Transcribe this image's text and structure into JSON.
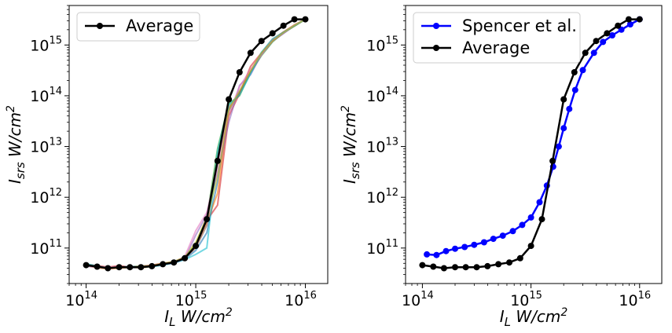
{
  "chart_data": [
    {
      "type": "line",
      "xscale": "log",
      "yscale": "log",
      "xlim": [
        70000000000000,
        16000000000000000
      ],
      "ylim": [
        20000000000,
        6000000000000000
      ],
      "xlabel": "I_L W/cm^2",
      "ylabel": "I_srs W/cm^2",
      "xticks": [
        {
          "value": 100000000000000,
          "base": "10",
          "exp": "14"
        },
        {
          "value": 1000000000000000,
          "base": "10",
          "exp": "15"
        },
        {
          "value": 10000000000000000,
          "base": "10",
          "exp": "16"
        }
      ],
      "yticks": [
        {
          "value": 100000000000,
          "base": "10",
          "exp": "11"
        },
        {
          "value": 1000000000000,
          "base": "10",
          "exp": "12"
        },
        {
          "value": 10000000000000,
          "base": "10",
          "exp": "13"
        },
        {
          "value": 100000000000000,
          "base": "10",
          "exp": "14"
        },
        {
          "value": 1000000000000000,
          "base": "10",
          "exp": "15"
        }
      ],
      "legend_position": "top-left",
      "background_runs": {
        "colors": [
          "#1f77b4",
          "#ff7f0e",
          "#2ca02c",
          "#d62728",
          "#9467bd",
          "#8c564b",
          "#e377c2",
          "#17becf",
          "#bcbd22"
        ],
        "x": [
          100000000000000,
          126000000000000,
          158000000000000,
          200000000000000,
          251000000000000,
          316000000000000,
          398000000000000,
          501000000000000,
          631000000000000,
          794000000000000,
          1000000000000000,
          1260000000000000,
          1580000000000000,
          2000000000000000,
          2510000000000000,
          3160000000000000,
          3980000000000000,
          5010000000000000,
          6310000000000000,
          7940000000000000,
          10000000000000000
        ],
        "series": [
          [
            46000000000,
            43000000000,
            40000000000,
            42000000000,
            41000000000,
            42000000000,
            44000000000,
            47000000000,
            52000000000,
            60000000000,
            90000000000,
            200000000000,
            2000000000000,
            50000000000000,
            120000000000000,
            280000000000000,
            650000000000000,
            1200000000000000,
            1700000000000000,
            2400000000000000,
            3200000000000000
          ],
          [
            45000000000,
            41000000000,
            39000000000,
            40000000000,
            42000000000,
            41000000000,
            43000000000,
            49000000000,
            51000000000,
            63000000000,
            110000000000,
            320000000000,
            1200000000000,
            60000000000000,
            110000000000000,
            300000000000000,
            700000000000000,
            1300000000000000,
            1800000000000000,
            2500000000000000,
            3200000000000000
          ],
          [
            48000000000,
            44000000000,
            41000000000,
            43000000000,
            43000000000,
            44000000000,
            45000000000,
            48000000000,
            54000000000,
            65000000000,
            120000000000,
            380000000000,
            9000000000000,
            70000000000000,
            100000000000000,
            290000000000000,
            620000000000000,
            1150000000000000,
            1750000000000000,
            2350000000000000,
            3200000000000000
          ],
          [
            47000000000,
            45000000000,
            42000000000,
            45000000000,
            42000000000,
            43000000000,
            46000000000,
            50000000000,
            53000000000,
            62000000000,
            115000000000,
            350000000000,
            700000000000,
            40000000000000,
            110000000000000,
            380000000000000,
            700000000000000,
            1250000000000000,
            1800000000000000,
            2450000000000000,
            3200000000000000
          ],
          [
            44000000000,
            42000000000,
            40000000000,
            41000000000,
            44000000000,
            42000000000,
            44000000000,
            47000000000,
            50000000000,
            61000000000,
            180000000000,
            450000000000,
            3000000000000,
            30000000000000,
            160000000000000,
            260000000000000,
            660000000000000,
            1180000000000000,
            1680000000000000,
            2420000000000000,
            3200000000000000
          ],
          [
            46000000000,
            44000000000,
            41000000000,
            42000000000,
            41000000000,
            44000000000,
            45000000000,
            49000000000,
            52000000000,
            64000000000,
            100000000000,
            280000000000,
            5000000000000,
            55000000000000,
            115000000000000,
            300000000000000,
            680000000000000,
            1220000000000000,
            1760000000000000,
            2380000000000000,
            3200000000000000
          ],
          [
            45000000000,
            43000000000,
            42000000000,
            43000000000,
            42000000000,
            43000000000,
            44000000000,
            48000000000,
            53000000000,
            68000000000,
            220000000000,
            500000000000,
            4000000000000,
            45000000000000,
            150000000000000,
            330000000000000,
            640000000000000,
            1260000000000000,
            1720000000000000,
            2460000000000000,
            3200000000000000
          ],
          [
            49000000000,
            44000000000,
            40000000000,
            42000000000,
            43000000000,
            42000000000,
            43000000000,
            46000000000,
            51000000000,
            59000000000,
            75000000000,
            100000000000,
            8000000000000,
            65000000000000,
            105000000000000,
            270000000000000,
            720000000000000,
            1320000000000000,
            1780000000000000,
            2400000000000000,
            3200000000000000
          ],
          [
            47000000000,
            42000000000,
            41000000000,
            41000000000,
            42000000000,
            43000000000,
            45000000000,
            50000000000,
            54000000000,
            66000000000,
            130000000000,
            400000000000,
            2500000000000,
            52000000000000,
            125000000000000,
            310000000000000,
            690000000000000,
            1200000000000000,
            1740000000000000,
            2430000000000000,
            3200000000000000
          ]
        ]
      },
      "series": [
        {
          "name": "Average",
          "color": "#000000",
          "x": [
            100000000000000,
            126000000000000,
            158000000000000,
            200000000000000,
            251000000000000,
            316000000000000,
            398000000000000,
            501000000000000,
            631000000000000,
            794000000000000,
            1000000000000000,
            1260000000000000,
            1580000000000000,
            2000000000000000,
            2510000000000000,
            3160000000000000,
            3980000000000000,
            5010000000000000,
            6310000000000000,
            7940000000000000,
            10000000000000000
          ],
          "y": [
            46000000000,
            43000000000,
            40000000000,
            42000000000,
            42000000000,
            42000000000,
            44000000000,
            48000000000,
            52000000000,
            63000000000,
            110000000000,
            370000000000,
            5200000000000,
            85000000000000,
            290000000000000,
            700000000000000,
            1200000000000000,
            1700000000000000,
            2400000000000000,
            3200000000000000,
            3200000000000000
          ]
        }
      ]
    },
    {
      "type": "line",
      "xscale": "log",
      "yscale": "log",
      "xlim": [
        70000000000000,
        16000000000000000
      ],
      "ylim": [
        20000000000,
        6000000000000000
      ],
      "xlabel": "I_L W/cm^2",
      "ylabel": "I_srs W/cm^2",
      "xticks": [
        {
          "value": 100000000000000,
          "base": "10",
          "exp": "14"
        },
        {
          "value": 1000000000000000,
          "base": "10",
          "exp": "15"
        },
        {
          "value": 10000000000000000,
          "base": "10",
          "exp": "16"
        }
      ],
      "yticks": [
        {
          "value": 100000000000,
          "base": "10",
          "exp": "11"
        },
        {
          "value": 1000000000000,
          "base": "10",
          "exp": "12"
        },
        {
          "value": 10000000000000,
          "base": "10",
          "exp": "13"
        },
        {
          "value": 100000000000000,
          "base": "10",
          "exp": "14"
        },
        {
          "value": 1000000000000000,
          "base": "10",
          "exp": "15"
        }
      ],
      "legend_position": "top-left",
      "series": [
        {
          "name": "Spencer et al.",
          "color": "#0000ff",
          "x": [
            110000000000000,
            135000000000000,
            165000000000000,
            200000000000000,
            245000000000000,
            300000000000000,
            370000000000000,
            450000000000000,
            550000000000000,
            680000000000000,
            830000000000000,
            1000000000000000,
            1200000000000000,
            1400000000000000,
            1600000000000000,
            1800000000000000,
            2000000000000000,
            2250000000000000,
            2550000000000000,
            3000000000000000,
            3800000000000000,
            4600000000000000,
            5600000000000000,
            6800000000000000,
            8200000000000000,
            10000000000000000
          ],
          "y": [
            75000000000,
            73000000000,
            87000000000,
            97000000000,
            105000000000,
            116000000000,
            130000000000,
            152000000000,
            175000000000,
            215000000000,
            285000000000,
            400000000000,
            800000000000,
            1700000000000,
            4000000000000,
            10000000000000,
            23000000000000,
            55000000000000,
            130000000000000,
            320000000000000,
            700000000000000,
            1150000000000000,
            1550000000000000,
            2000000000000000,
            2550000000000000,
            3200000000000000
          ]
        },
        {
          "name": "Average",
          "color": "#000000",
          "x": [
            100000000000000,
            126000000000000,
            158000000000000,
            200000000000000,
            251000000000000,
            316000000000000,
            398000000000000,
            501000000000000,
            631000000000000,
            794000000000000,
            1000000000000000,
            1260000000000000,
            1580000000000000,
            2000000000000000,
            2510000000000000,
            3160000000000000,
            3980000000000000,
            5010000000000000,
            6310000000000000,
            7940000000000000,
            10000000000000000
          ],
          "y": [
            46000000000,
            43000000000,
            40000000000,
            42000000000,
            42000000000,
            42000000000,
            44000000000,
            48000000000,
            52000000000,
            63000000000,
            110000000000,
            370000000000,
            5200000000000,
            85000000000000,
            290000000000000,
            700000000000000,
            1200000000000000,
            1700000000000000,
            2400000000000000,
            3200000000000000,
            3200000000000000
          ]
        }
      ]
    }
  ]
}
